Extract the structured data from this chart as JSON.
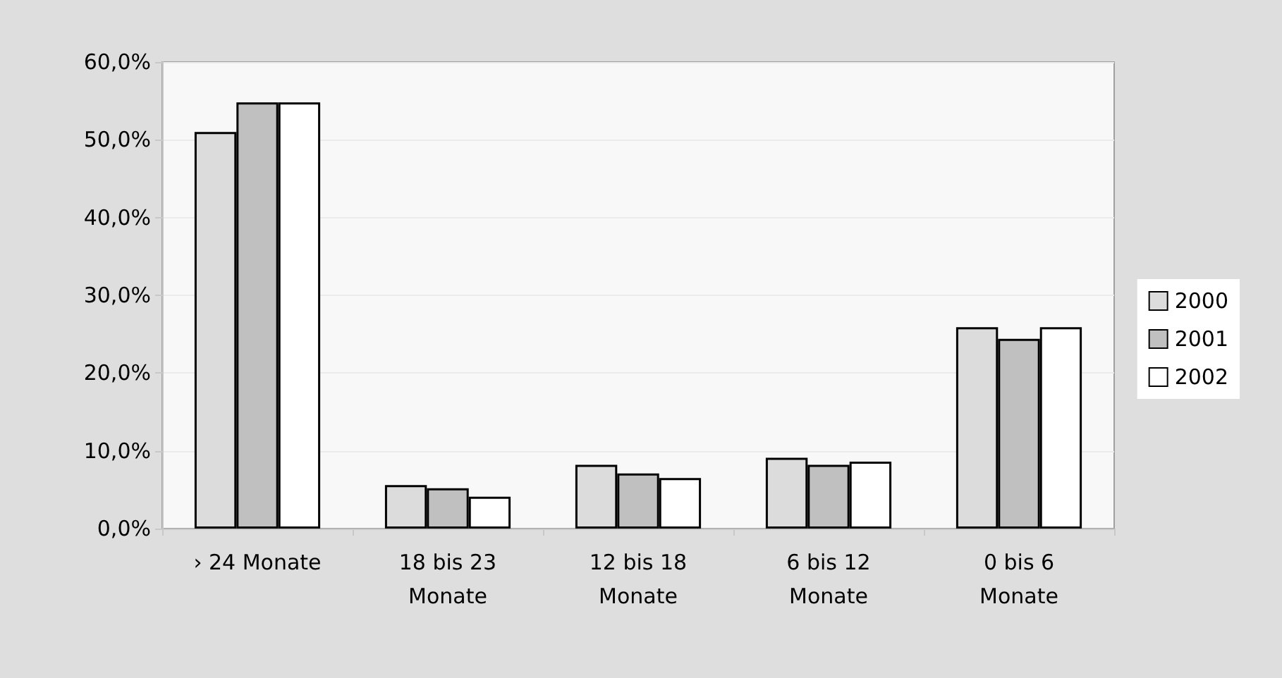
{
  "chart_data": {
    "type": "bar",
    "categories": [
      "› 24 Monate",
      "18 bis 23\nMonate",
      "12 bis 18\nMonate",
      "6 bis 12\nMonate",
      "0 bis 6\nMonate"
    ],
    "series": [
      {
        "name": "2000",
        "color": "#dcdcdc",
        "values": [
          51.0,
          5.6,
          8.2,
          9.1,
          25.9
        ]
      },
      {
        "name": "2001",
        "color": "#c0c0c0",
        "values": [
          54.8,
          5.2,
          7.1,
          8.2,
          24.4
        ]
      },
      {
        "name": "2002",
        "color": "#ffffff",
        "values": [
          54.8,
          4.1,
          6.5,
          8.6,
          25.9
        ]
      }
    ],
    "ylim": [
      0,
      60
    ],
    "yticks": [
      {
        "value": 0,
        "label": "0,0%"
      },
      {
        "value": 10,
        "label": "10,0%"
      },
      {
        "value": 20,
        "label": "20,0%"
      },
      {
        "value": 30,
        "label": "30,0%"
      },
      {
        "value": 40,
        "label": "40,0%"
      },
      {
        "value": 50,
        "label": "50,0%"
      },
      {
        "value": 60,
        "label": "60,0%"
      }
    ],
    "grid": "y",
    "legend": "right"
  }
}
